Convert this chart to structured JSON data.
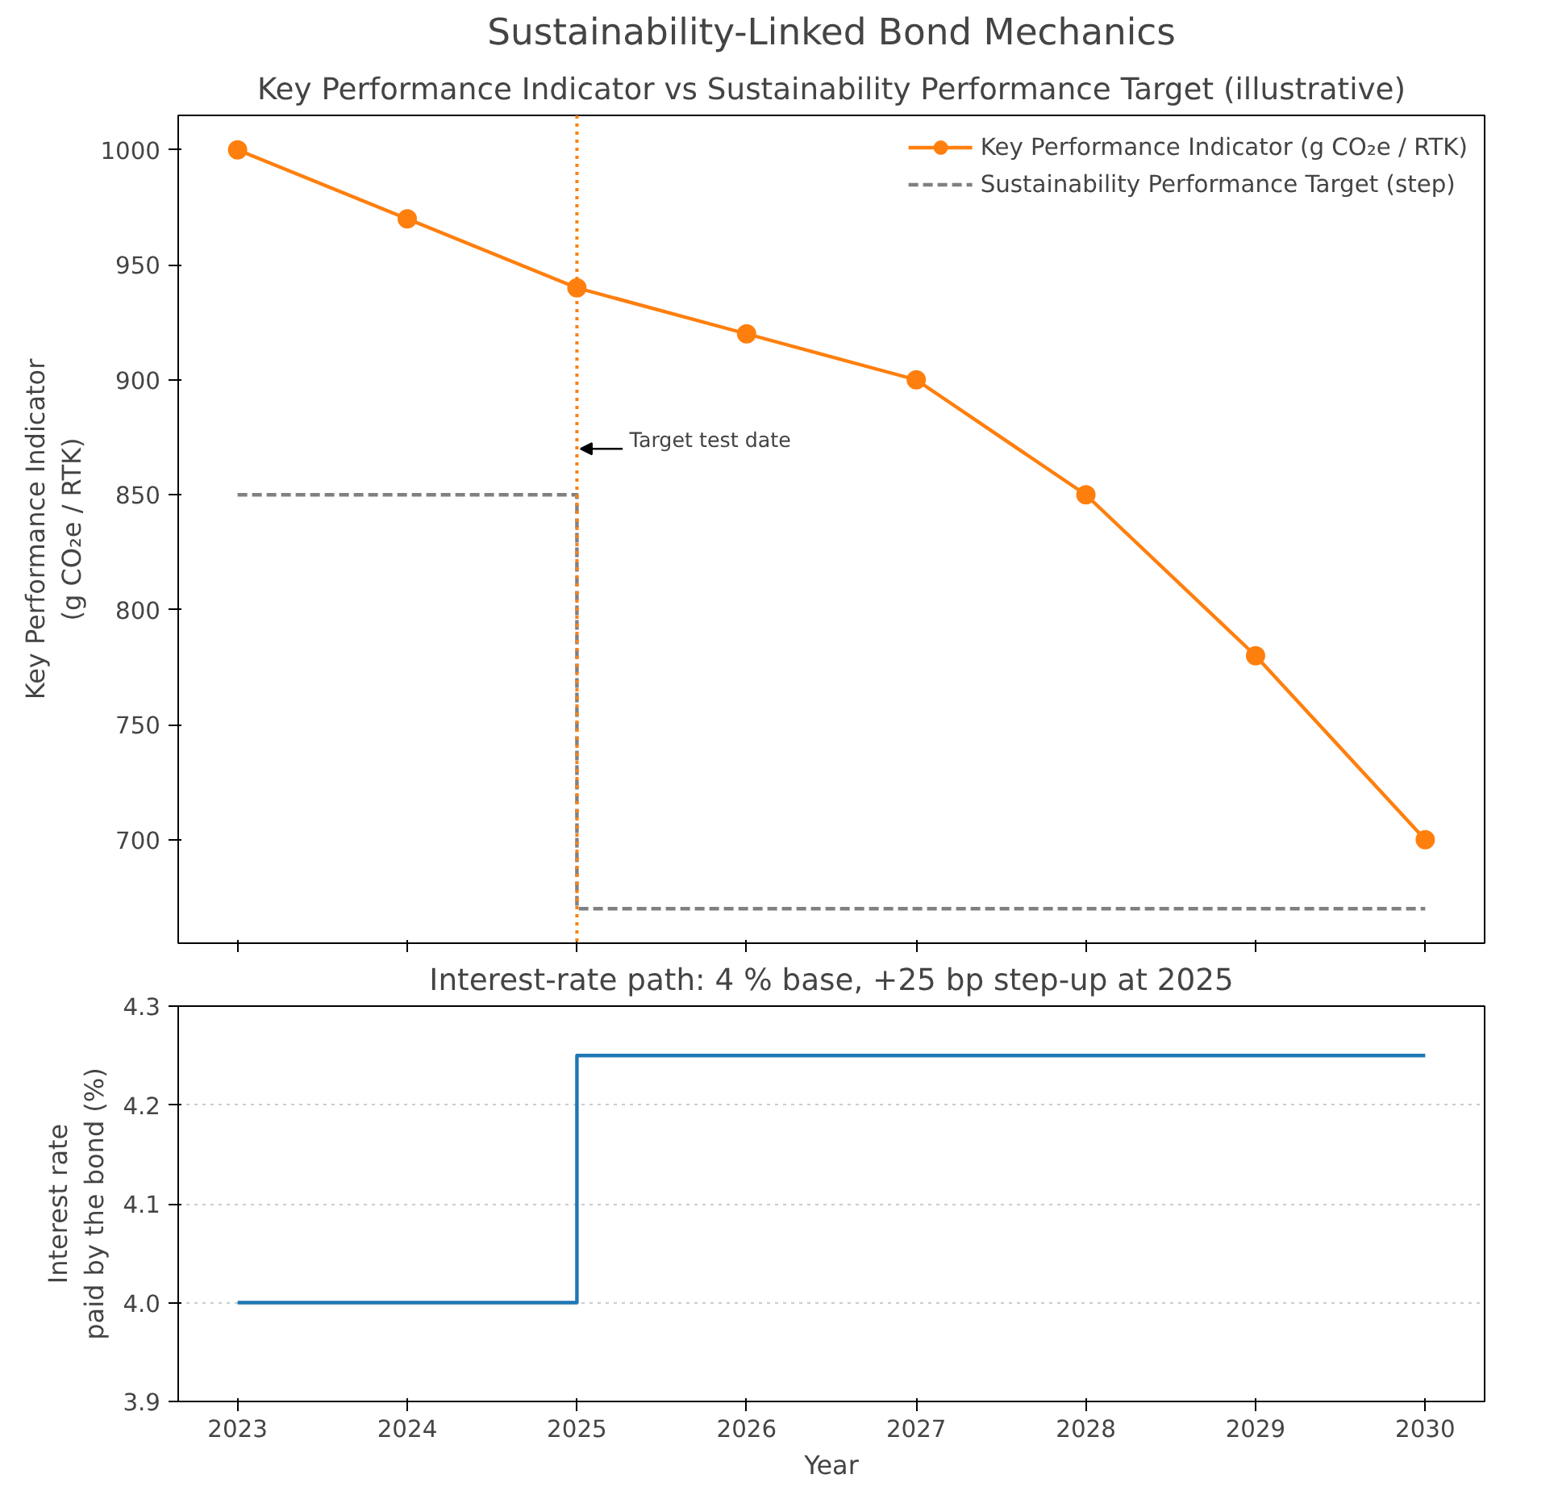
{
  "chart_data": [
    {
      "type": "line",
      "title": "Sustainability-Linked Bond Mechanics",
      "subtitle": "Key Performance Indicator vs Sustainability Performance Target (illustrative)",
      "ylabel": "Key Performance Indicator\n(g CO₂e / RTK)",
      "x": [
        2023,
        2024,
        2025,
        2026,
        2027,
        2028,
        2029,
        2030
      ],
      "series": [
        {
          "name": "Key Performance Indicator (g CO₂e / RTK)",
          "color": "#ff7f0e",
          "marker": "circle",
          "values": [
            1000,
            970,
            940,
            920,
            900,
            850,
            780,
            700
          ]
        },
        {
          "name": "Sustainability Performance Target (step)",
          "type": "step",
          "color": "#808080",
          "line_style": "dashed",
          "x": [
            2023,
            2025,
            2030
          ],
          "values": [
            850,
            670,
            670
          ]
        }
      ],
      "xlim": [
        2022.65,
        2030.35
      ],
      "ylim": [
        655,
        1015
      ],
      "xticks": [
        2023,
        2024,
        2025,
        2026,
        2027,
        2028,
        2029,
        2030
      ],
      "yticks": [
        700,
        750,
        800,
        850,
        900,
        950,
        1000
      ],
      "ref_lines": [
        {
          "axis": "x",
          "value": 2025,
          "color": "#ff7f0e",
          "line_style": "dotted"
        }
      ],
      "annotations": [
        {
          "text": "Target test date",
          "x": 2025,
          "y": 870
        }
      ],
      "legend": "top right",
      "tick_labels": "y",
      "grid": false
    },
    {
      "type": "step",
      "title": "Interest-rate path: 4 % base, +25 bp step-up at 2025",
      "xlabel": "Year",
      "ylabel": "Interest rate\npaid by the bond (%)",
      "x": [
        2023,
        2025,
        2030
      ],
      "series": [
        {
          "color": "#1f77b4",
          "values": [
            4.0,
            4.25,
            4.25
          ]
        }
      ],
      "xlim": [
        2022.65,
        2030.35
      ],
      "ylim": [
        3.9,
        4.3
      ],
      "xticks": [
        2023,
        2024,
        2025,
        2026,
        2027,
        2028,
        2029,
        2030
      ],
      "yticks": [
        {
          "value": 3.9,
          "label": "3.9"
        },
        {
          "value": 4,
          "label": "4.0"
        },
        {
          "value": 4.1,
          "label": "4.1"
        },
        {
          "value": 4.2,
          "label": "4.2"
        },
        {
          "value": 4.3,
          "label": "4.3"
        }
      ],
      "grid": "y",
      "legend": false
    }
  ]
}
